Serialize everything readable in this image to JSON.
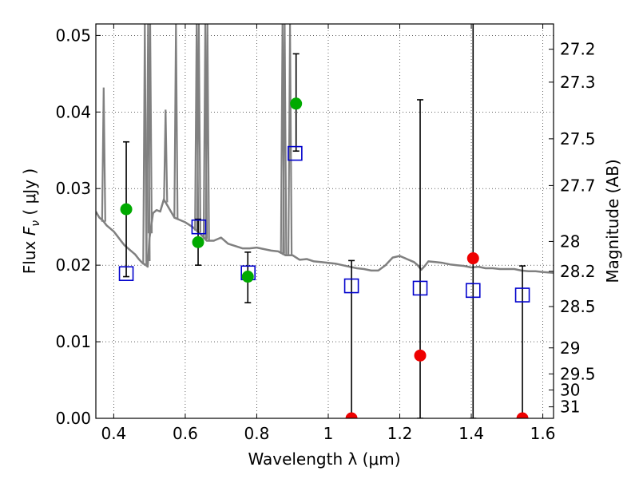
{
  "chart_data": {
    "type": "scatter",
    "xlabel": "Wavelength  λ (μm)",
    "ylabel": "Flux  F_ν  ( μJy )",
    "y2label": "Magnitude (AB)",
    "xlim": [
      0.35,
      1.63
    ],
    "ylim": [
      0.0,
      0.0515
    ],
    "grid": true,
    "x_ticks": [
      0.4,
      0.6,
      0.8,
      1.0,
      1.2,
      1.4,
      1.6
    ],
    "x_tick_labels": [
      "0.4",
      "0.6",
      "0.8",
      "1",
      "1.2",
      "1.4",
      "1.6"
    ],
    "y_ticks": [
      0.0,
      0.01,
      0.02,
      0.03,
      0.04,
      0.05
    ],
    "y_tick_labels": [
      "0.00",
      "0.01",
      "0.02",
      "0.03",
      "0.04",
      "0.05"
    ],
    "y2_ticks": [
      {
        "label": "27.2",
        "flux": 0.0482
      },
      {
        "label": "27.3",
        "flux": 0.0439
      },
      {
        "label": "27.5",
        "flux": 0.0365
      },
      {
        "label": "27.7",
        "flux": 0.0304
      },
      {
        "label": "28",
        "flux": 0.0231
      },
      {
        "label": "28.2",
        "flux": 0.0192
      },
      {
        "label": "28.5",
        "flux": 0.0146
      },
      {
        "label": "29",
        "flux": 0.0092
      },
      {
        "label": "29.5",
        "flux": 0.0058
      },
      {
        "label": "30",
        "flux": 0.0037
      },
      {
        "label": "31",
        "flux": 0.0015
      }
    ],
    "colors": {
      "sed": "#808080",
      "detection": "#00aa00",
      "upper_limit": "#ee0000",
      "model": "#0000cc",
      "error_bar": "#000000"
    },
    "sed_model": {
      "x": [
        0.35,
        0.36,
        0.37,
        0.38,
        0.39,
        0.4,
        0.41,
        0.42,
        0.43,
        0.44,
        0.45,
        0.46,
        0.47,
        0.48,
        0.49,
        0.495,
        0.5,
        0.51,
        0.52,
        0.53,
        0.54,
        0.55,
        0.56,
        0.57,
        0.58,
        0.6,
        0.62,
        0.64,
        0.66,
        0.68,
        0.7,
        0.72,
        0.74,
        0.76,
        0.78,
        0.8,
        0.82,
        0.84,
        0.86,
        0.88,
        0.9,
        0.92,
        0.94,
        0.96,
        0.98,
        1.0,
        1.02,
        1.04,
        1.06,
        1.08,
        1.1,
        1.12,
        1.14,
        1.16,
        1.18,
        1.2,
        1.22,
        1.24,
        1.25,
        1.26,
        1.27,
        1.28,
        1.3,
        1.32,
        1.34,
        1.36,
        1.38,
        1.4,
        1.42,
        1.44,
        1.46,
        1.48,
        1.5,
        1.52,
        1.54,
        1.56,
        1.58,
        1.6,
        1.63
      ],
      "y": [
        0.027,
        0.0262,
        0.0258,
        0.0252,
        0.0248,
        0.0244,
        0.0238,
        0.0232,
        0.0226,
        0.0222,
        0.0218,
        0.0214,
        0.0208,
        0.0203,
        0.02,
        0.0198,
        0.0235,
        0.0268,
        0.0272,
        0.027,
        0.0286,
        0.0278,
        0.027,
        0.0262,
        0.026,
        0.0256,
        0.025,
        0.0242,
        0.0232,
        0.0232,
        0.0236,
        0.0228,
        0.0225,
        0.0222,
        0.0222,
        0.0223,
        0.0221,
        0.0219,
        0.0218,
        0.0213,
        0.0213,
        0.0207,
        0.0208,
        0.0205,
        0.0204,
        0.0203,
        0.0202,
        0.02,
        0.0198,
        0.0196,
        0.0195,
        0.0193,
        0.0193,
        0.02,
        0.021,
        0.0212,
        0.0208,
        0.0204,
        0.02,
        0.0194,
        0.0199,
        0.0205,
        0.0204,
        0.0203,
        0.0201,
        0.02,
        0.0199,
        0.0197,
        0.0198,
        0.0196,
        0.0196,
        0.0195,
        0.0195,
        0.0195,
        0.0193,
        0.0192,
        0.0192,
        0.0191,
        0.019
      ]
    },
    "emission_lines": [
      {
        "x": 0.372,
        "peak": 0.0432
      },
      {
        "x": 0.487,
        "peak": 0.0515
      },
      {
        "x": 0.496,
        "peak": 0.0515
      },
      {
        "x": 0.502,
        "peak": 0.0515
      },
      {
        "x": 0.545,
        "peak": 0.0403
      },
      {
        "x": 0.574,
        "peak": 0.0515
      },
      {
        "x": 0.632,
        "peak": 0.0515
      },
      {
        "x": 0.638,
        "peak": 0.0515
      },
      {
        "x": 0.656,
        "peak": 0.0515
      },
      {
        "x": 0.662,
        "peak": 0.0515
      },
      {
        "x": 0.872,
        "peak": 0.0515
      },
      {
        "x": 0.878,
        "peak": 0.0515
      },
      {
        "x": 0.893,
        "peak": 0.0515
      }
    ],
    "observed_detections": [
      {
        "x": 0.435,
        "y": 0.0273,
        "err_low": 0.0185,
        "err_high": 0.0361
      },
      {
        "x": 0.636,
        "y": 0.023,
        "err_low": 0.02,
        "err_high": 0.026
      },
      {
        "x": 0.775,
        "y": 0.0185,
        "err_low": 0.0151,
        "err_high": 0.0217
      },
      {
        "x": 0.91,
        "y": 0.0411,
        "err_low": 0.0349,
        "err_high": 0.0476
      }
    ],
    "observed_upper_limits": [
      {
        "x": 1.065,
        "y": 0.0,
        "err_low": 0.0,
        "err_high": 0.0206
      },
      {
        "x": 1.257,
        "y": 0.0082,
        "err_low": 0.0,
        "err_high": 0.0416
      },
      {
        "x": 1.405,
        "y": 0.0209,
        "err_low": 0.0,
        "err_high": 0.0515
      },
      {
        "x": 1.543,
        "y": 0.0,
        "err_low": 0.0,
        "err_high": 0.0199
      }
    ],
    "model_fluxes": [
      {
        "x": 0.435,
        "y": 0.0189
      },
      {
        "x": 0.638,
        "y": 0.025
      },
      {
        "x": 0.776,
        "y": 0.019
      },
      {
        "x": 0.907,
        "y": 0.0346
      },
      {
        "x": 1.065,
        "y": 0.0173
      },
      {
        "x": 1.257,
        "y": 0.017
      },
      {
        "x": 1.405,
        "y": 0.0167
      },
      {
        "x": 1.543,
        "y": 0.0161
      }
    ]
  }
}
